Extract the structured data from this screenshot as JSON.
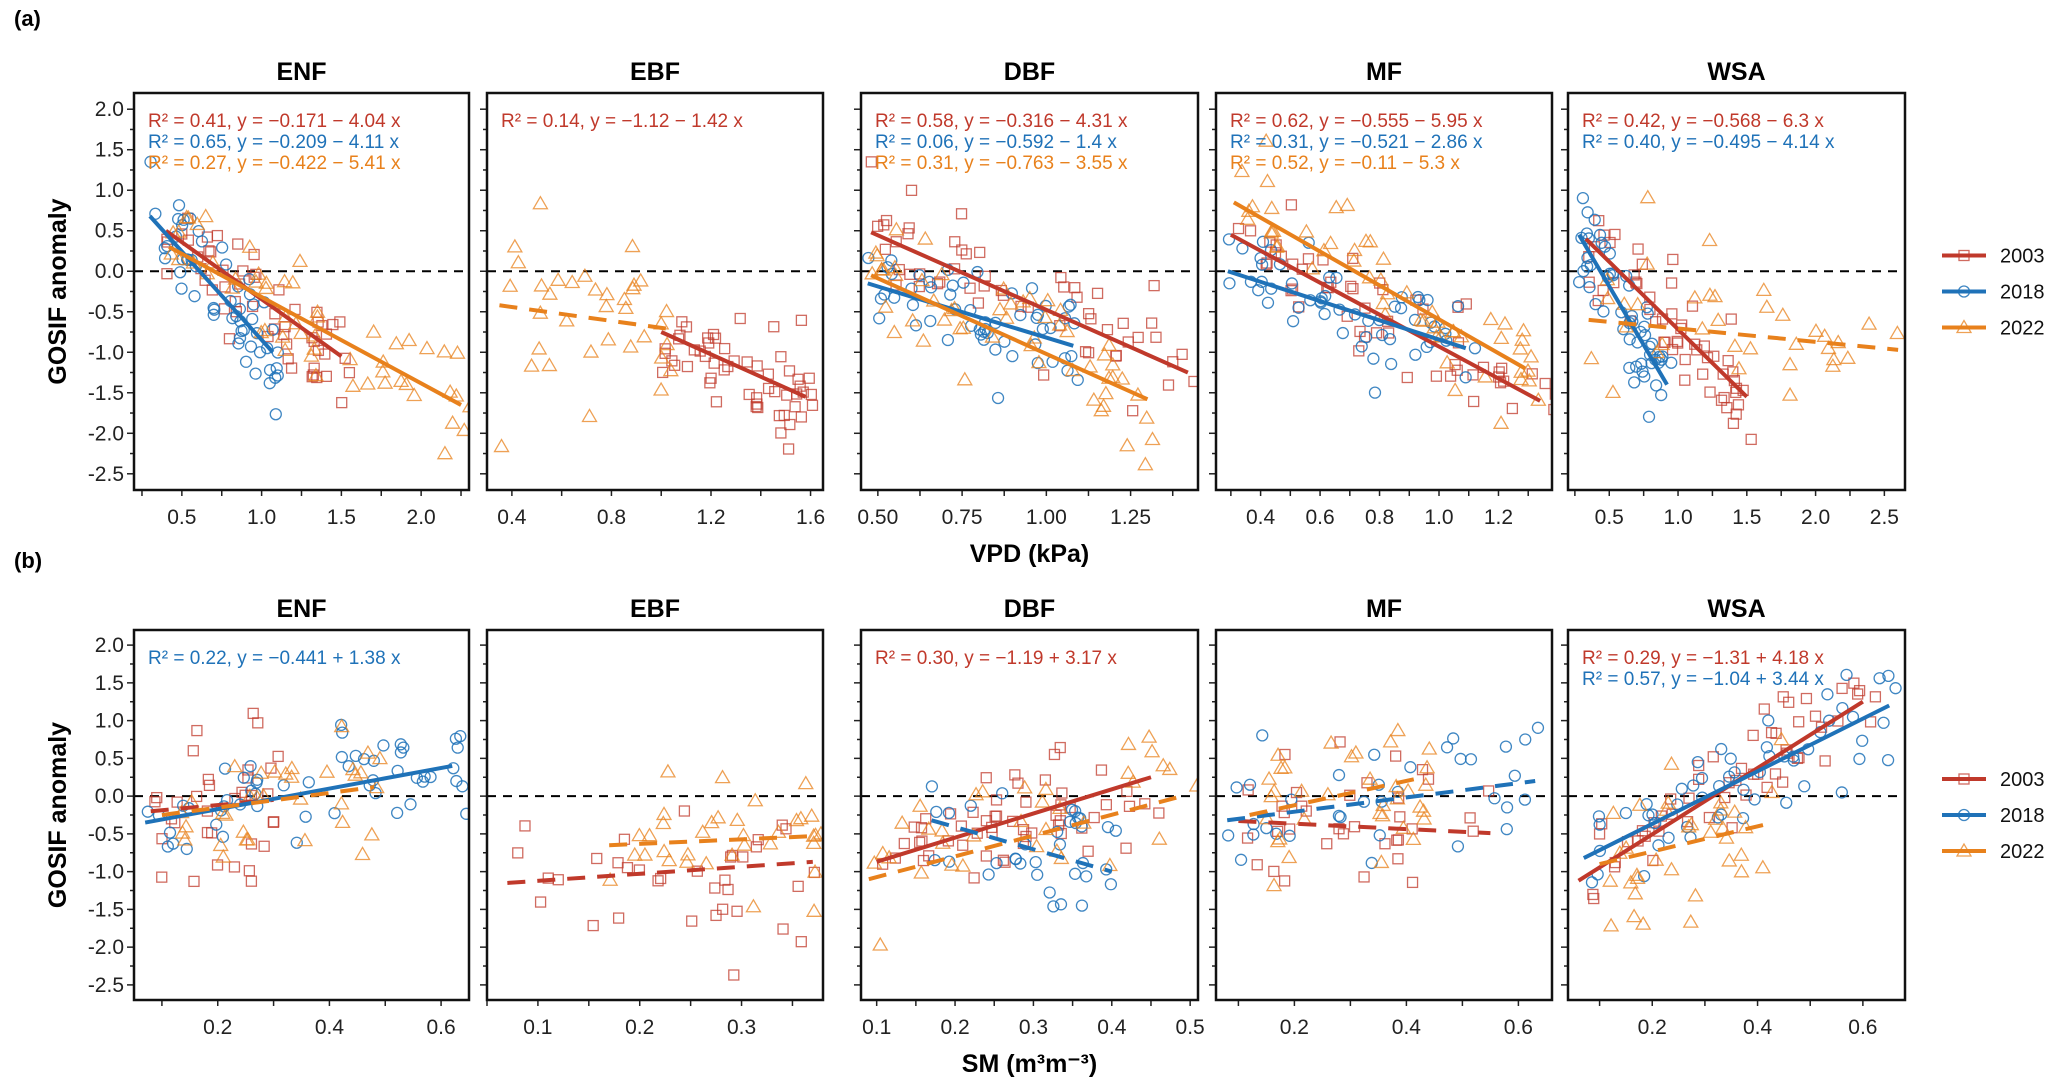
{
  "colors": {
    "2003": "#c0392b",
    "2018": "#1f72b8",
    "2022": "#e8811c"
  },
  "markers": {
    "2003": "square",
    "2018": "circle",
    "2022": "triangle"
  },
  "legend": {
    "title": "",
    "entries": [
      "2003",
      "2018",
      "2022"
    ]
  },
  "chart_data": [
    {
      "row_label": "(a)",
      "type": "scatter",
      "xlabel": "VPD (kPa)",
      "ylabel": "GOSIF anomaly",
      "ylim": [
        -2.7,
        2.2
      ],
      "yticks": [
        2.0,
        1.5,
        1.0,
        0.5,
        0.0,
        -0.5,
        -1.0,
        -1.5,
        -2.0,
        -2.5
      ],
      "reference_line": 0,
      "panels": [
        {
          "title": "ENF",
          "xlim": [
            0.2,
            2.3
          ],
          "xticks": [
            0.5,
            1.0,
            1.5,
            2.0
          ],
          "xtick_labels": [
            "0.5",
            "1.0",
            "1.5",
            "2.0"
          ],
          "annotations": [
            {
              "year": "2003",
              "text": "R² = 0.41, y = −0.171 − 4.04 x"
            },
            {
              "year": "2018",
              "text": "R² = 0.65, y = −0.209 − 4.11 x"
            },
            {
              "year": "2022",
              "text": "R² = 0.27, y = −0.422 − 5.41 x"
            }
          ],
          "fits": [
            {
              "year": "2003",
              "x": [
                0.4,
                1.5
              ],
              "y": [
                0.5,
                -1.05
              ],
              "dashed": false
            },
            {
              "year": "2018",
              "x": [
                0.3,
                1.07
              ],
              "y": [
                0.68,
                -1.0
              ],
              "dashed": false
            },
            {
              "year": "2022",
              "x": [
                0.42,
                2.25
              ],
              "y": [
                0.3,
                -1.65
              ],
              "dashed": false
            }
          ]
        },
        {
          "title": "EBF",
          "xlim": [
            0.3,
            1.65
          ],
          "xticks": [
            0.4,
            0.8,
            1.2,
            1.6
          ],
          "xtick_labels": [
            "0.4",
            "0.8",
            "1.2",
            "1.6"
          ],
          "annotations": [
            {
              "year": "2003",
              "text": "R² = 0.14, y = −1.12 − 1.42 x"
            }
          ],
          "fits": [
            {
              "year": "2003",
              "x": [
                1.0,
                1.58
              ],
              "y": [
                -0.75,
                -1.55
              ],
              "dashed": false
            },
            {
              "year": "2022",
              "x": [
                0.35,
                1.05
              ],
              "y": [
                -0.42,
                -0.72
              ],
              "dashed": true
            }
          ]
        },
        {
          "title": "DBF",
          "xlim": [
            0.45,
            1.45
          ],
          "xticks": [
            0.5,
            0.75,
            1.0,
            1.25
          ],
          "xtick_labels": [
            "0.50",
            "0.75",
            "1.00",
            "1.25"
          ],
          "annotations": [
            {
              "year": "2003",
              "text": "R² = 0.58, y = −0.316 − 4.31 x"
            },
            {
              "year": "2018",
              "text": "R² = 0.06, y = −0.592 − 1.4 x"
            },
            {
              "year": "2022",
              "text": "R² = 0.31, y = −0.763 − 3.55 x"
            }
          ],
          "fits": [
            {
              "year": "2003",
              "x": [
                0.48,
                1.42
              ],
              "y": [
                0.48,
                -1.25
              ],
              "dashed": false
            },
            {
              "year": "2018",
              "x": [
                0.47,
                1.08
              ],
              "y": [
                -0.15,
                -0.92
              ],
              "dashed": false
            },
            {
              "year": "2022",
              "x": [
                0.48,
                1.3
              ],
              "y": [
                -0.05,
                -1.58
              ],
              "dashed": false
            }
          ]
        },
        {
          "title": "MF",
          "xlim": [
            0.25,
            1.38
          ],
          "xticks": [
            0.4,
            0.6,
            0.8,
            1.0,
            1.2
          ],
          "xtick_labels": [
            "0.4",
            "0.6",
            "0.8",
            "1.0",
            "1.2"
          ],
          "annotations": [
            {
              "year": "2003",
              "text": "R² = 0.62, y = −0.555 − 5.95 x"
            },
            {
              "year": "2018",
              "text": "R² = 0.31, y = −0.521 − 2.86 x"
            },
            {
              "year": "2022",
              "text": "R² = 0.52, y = −0.11 − 5.3 x"
            }
          ],
          "fits": [
            {
              "year": "2003",
              "x": [
                0.3,
                1.34
              ],
              "y": [
                0.45,
                -1.6
              ],
              "dashed": false
            },
            {
              "year": "2018",
              "x": [
                0.29,
                1.09
              ],
              "y": [
                0.0,
                -0.95
              ],
              "dashed": false
            },
            {
              "year": "2022",
              "x": [
                0.31,
                1.29
              ],
              "y": [
                0.85,
                -1.2
              ],
              "dashed": false
            }
          ]
        },
        {
          "title": "WSA",
          "xlim": [
            0.2,
            2.65
          ],
          "xticks": [
            0.5,
            1.0,
            1.5,
            2.0,
            2.5
          ],
          "xtick_labels": [
            "0.5",
            "1.0",
            "1.5",
            "2.0",
            "2.5"
          ],
          "annotations": [
            {
              "year": "2003",
              "text": "R² = 0.42, y = −0.568 − 6.3 x"
            },
            {
              "year": "2018",
              "text": "R² = 0.40, y = −0.495 − 4.14 x"
            }
          ],
          "fits": [
            {
              "year": "2003",
              "x": [
                0.33,
                1.5
              ],
              "y": [
                0.4,
                -1.55
              ],
              "dashed": false
            },
            {
              "year": "2018",
              "x": [
                0.28,
                0.92
              ],
              "y": [
                0.45,
                -1.4
              ],
              "dashed": false
            },
            {
              "year": "2022",
              "x": [
                0.35,
                2.6
              ],
              "y": [
                -0.6,
                -0.97
              ],
              "dashed": true
            }
          ]
        }
      ]
    },
    {
      "row_label": "(b)",
      "type": "scatter",
      "xlabel": "SM (m³m⁻³)",
      "ylabel": "GOSIF anomaly",
      "ylim": [
        -2.7,
        2.2
      ],
      "yticks": [
        2.0,
        1.5,
        1.0,
        0.5,
        0.0,
        -0.5,
        -1.0,
        -1.5,
        -2.0,
        -2.5
      ],
      "reference_line": 0,
      "panels": [
        {
          "title": "ENF",
          "xlim": [
            0.05,
            0.65
          ],
          "xticks": [
            0.2,
            0.4,
            0.6
          ],
          "xtick_labels": [
            "0.2",
            "0.4",
            "0.6"
          ],
          "annotations": [
            {
              "year": "2018",
              "text": "R² = 0.22, y = −0.441 + 1.38 x"
            }
          ],
          "fits": [
            {
              "year": "2003",
              "x": [
                0.08,
                0.3
              ],
              "y": [
                -0.2,
                -0.05
              ],
              "dashed": true
            },
            {
              "year": "2018",
              "x": [
                0.07,
                0.62
              ],
              "y": [
                -0.35,
                0.4
              ],
              "dashed": false
            },
            {
              "year": "2022",
              "x": [
                0.1,
                0.48
              ],
              "y": [
                -0.25,
                0.12
              ],
              "dashed": true
            }
          ]
        },
        {
          "title": "EBF",
          "xlim": [
            0.05,
            0.38
          ],
          "xticks": [
            0.1,
            0.2,
            0.3
          ],
          "xtick_labels": [
            "0.1",
            "0.2",
            "0.3"
          ],
          "annotations": [],
          "fits": [
            {
              "year": "2003",
              "x": [
                0.07,
                0.37
              ],
              "y": [
                -1.15,
                -0.87
              ],
              "dashed": true
            },
            {
              "year": "2022",
              "x": [
                0.17,
                0.37
              ],
              "y": [
                -0.65,
                -0.53
              ],
              "dashed": true
            }
          ]
        },
        {
          "title": "DBF",
          "xlim": [
            0.08,
            0.51
          ],
          "xticks": [
            0.1,
            0.2,
            0.3,
            0.4,
            0.5
          ],
          "xtick_labels": [
            "0.1",
            "0.2",
            "0.3",
            "0.4",
            "0.5"
          ],
          "annotations": [
            {
              "year": "2003",
              "text": "R² = 0.30, y = −1.19 + 3.17 x"
            }
          ],
          "fits": [
            {
              "year": "2003",
              "x": [
                0.1,
                0.45
              ],
              "y": [
                -0.87,
                0.25
              ],
              "dashed": false
            },
            {
              "year": "2018",
              "x": [
                0.17,
                0.4
              ],
              "y": [
                -0.32,
                -1.0
              ],
              "dashed": true
            },
            {
              "year": "2022",
              "x": [
                0.09,
                0.49
              ],
              "y": [
                -1.1,
                0.0
              ],
              "dashed": true
            }
          ]
        },
        {
          "title": "MF",
          "xlim": [
            0.06,
            0.66
          ],
          "xticks": [
            0.2,
            0.4,
            0.6
          ],
          "xtick_labels": [
            "0.2",
            "0.4",
            "0.6"
          ],
          "annotations": [],
          "fits": [
            {
              "year": "2003",
              "x": [
                0.1,
                0.55
              ],
              "y": [
                -0.33,
                -0.49
              ],
              "dashed": true
            },
            {
              "year": "2018",
              "x": [
                0.08,
                0.63
              ],
              "y": [
                -0.32,
                0.2
              ],
              "dashed": true
            },
            {
              "year": "2022",
              "x": [
                0.12,
                0.43
              ],
              "y": [
                -0.25,
                0.25
              ],
              "dashed": true
            }
          ]
        },
        {
          "title": "WSA",
          "xlim": [
            0.04,
            0.68
          ],
          "xticks": [
            0.2,
            0.4,
            0.6
          ],
          "xtick_labels": [
            "0.2",
            "0.4",
            "0.6"
          ],
          "annotations": [
            {
              "year": "2003",
              "text": "R² = 0.29, y = −1.31 + 4.18 x"
            },
            {
              "year": "2018",
              "text": "R² = 0.57, y = −1.04 + 3.44 x"
            }
          ],
          "fits": [
            {
              "year": "2003",
              "x": [
                0.06,
                0.6
              ],
              "y": [
                -1.12,
                1.25
              ],
              "dashed": false
            },
            {
              "year": "2018",
              "x": [
                0.07,
                0.65
              ],
              "y": [
                -0.82,
                1.2
              ],
              "dashed": false
            },
            {
              "year": "2022",
              "x": [
                0.1,
                0.43
              ],
              "y": [
                -0.9,
                -0.35
              ],
              "dashed": true
            }
          ]
        }
      ]
    }
  ]
}
